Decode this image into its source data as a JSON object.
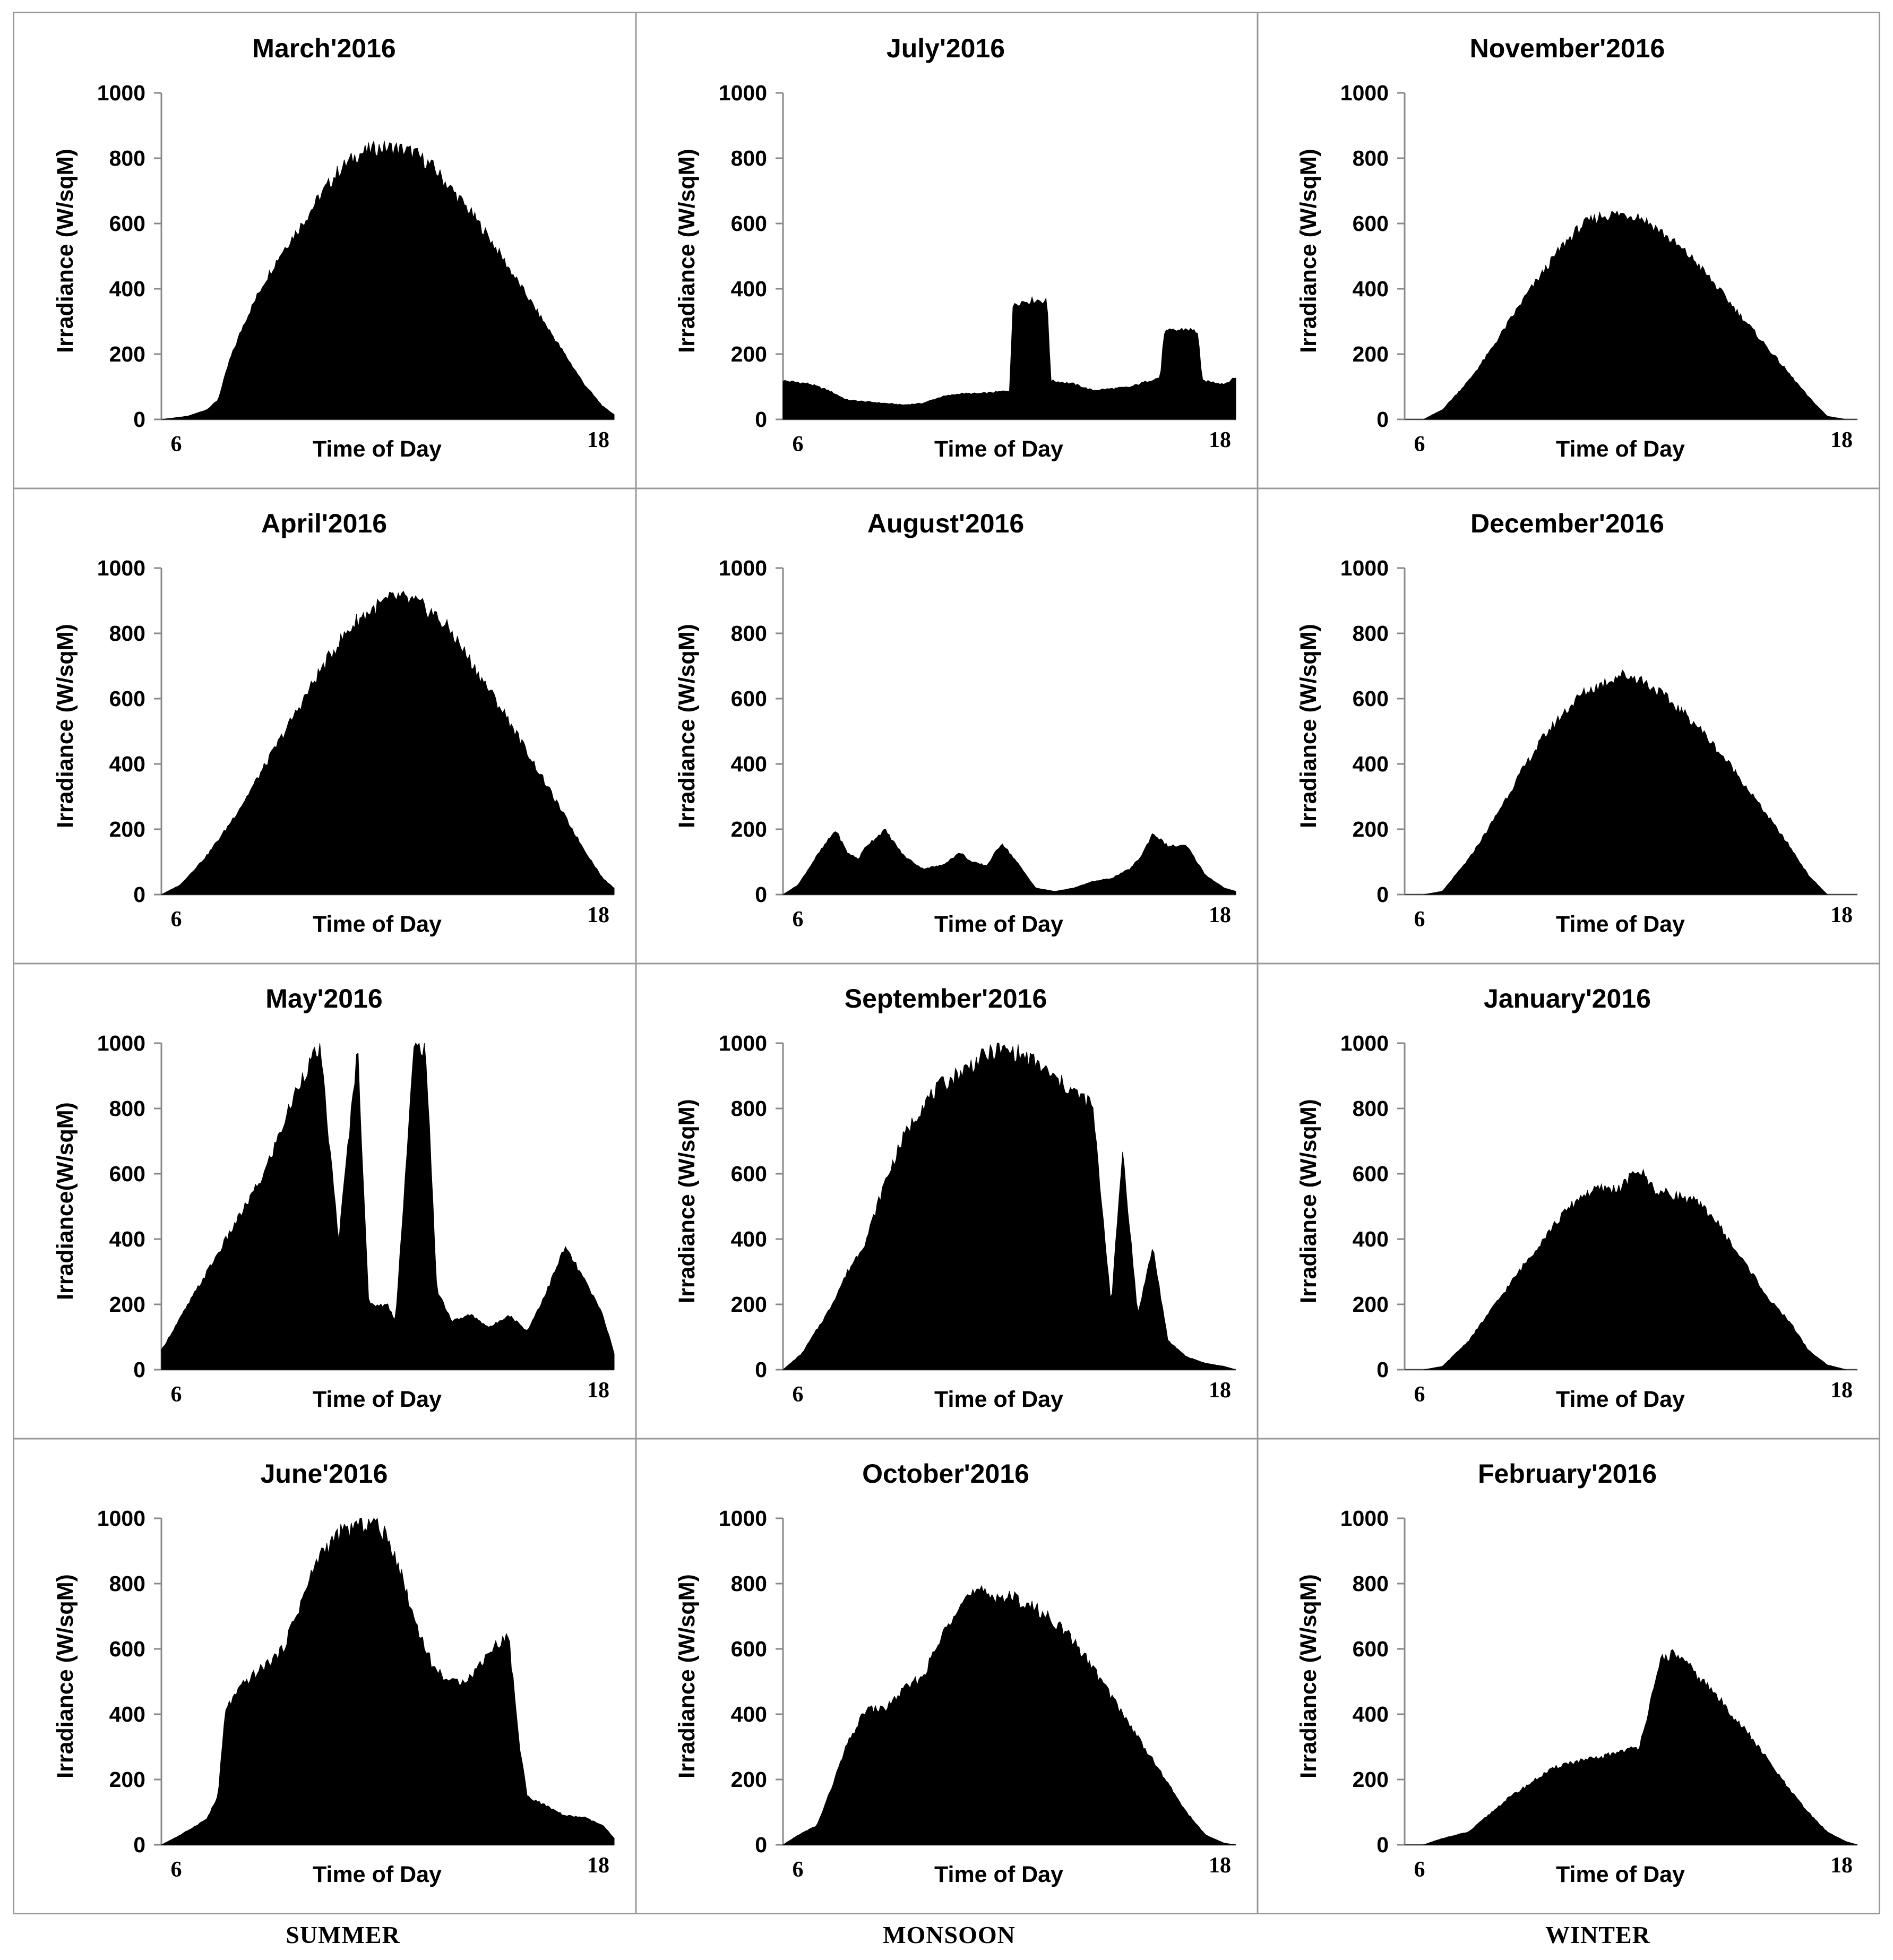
{
  "seasons": [
    "SUMMER",
    "MONSOON",
    "WINTER"
  ],
  "chart_data": [
    {
      "type": "area",
      "title": "March'2016",
      "xlabel": "Time of Day",
      "ylabel": "Irradiance (W/sqM)",
      "ylim": [
        0,
        1000
      ],
      "yticks": [
        0,
        200,
        400,
        600,
        800,
        1000
      ],
      "xtick_labels": [
        "6",
        "18"
      ],
      "season": "SUMMER",
      "x": [
        5.8,
        6.5,
        7.0,
        7.3,
        7.6,
        8.0,
        8.5,
        9.0,
        9.5,
        10.0,
        10.5,
        11.0,
        11.5,
        12.0,
        12.5,
        13.0,
        13.5,
        14.0,
        14.5,
        15.0,
        15.5,
        16.0,
        16.5,
        17.0,
        17.5,
        17.8
      ],
      "y": [
        0,
        10,
        30,
        60,
        180,
        300,
        420,
        520,
        600,
        690,
        770,
        820,
        840,
        840,
        825,
        780,
        710,
        640,
        560,
        470,
        380,
        290,
        200,
        110,
        40,
        15
      ]
    },
    {
      "type": "area",
      "title": "July'2016",
      "xlabel": "Time of Day",
      "ylabel": "Irradiance (W/sqM)",
      "ylim": [
        0,
        1000
      ],
      "yticks": [
        0,
        200,
        400,
        600,
        800,
        1000
      ],
      "xtick_labels": [
        "6",
        "18"
      ],
      "season": "MONSOON",
      "x": [
        5.8,
        6.5,
        7.0,
        7.5,
        8.0,
        8.5,
        9.0,
        9.5,
        10.0,
        10.5,
        11.0,
        11.5,
        11.8,
        11.9,
        12.5,
        12.8,
        12.9,
        13.5,
        14.0,
        14.5,
        15.0,
        15.5,
        15.8,
        15.9,
        16.5,
        16.8,
        16.9,
        17.5,
        17.8
      ],
      "y": [
        120,
        110,
        90,
        60,
        55,
        50,
        45,
        50,
        70,
        80,
        80,
        85,
        90,
        360,
        370,
        365,
        120,
        110,
        90,
        95,
        100,
        120,
        130,
        270,
        280,
        270,
        120,
        110,
        130
      ]
    },
    {
      "type": "area",
      "title": "November'2016",
      "xlabel": "Time of Day",
      "ylabel": "Irradiance (W/sqM)",
      "ylim": [
        0,
        1000
      ],
      "yticks": [
        0,
        200,
        400,
        600,
        800,
        1000
      ],
      "xtick_labels": [
        "6",
        "18"
      ],
      "season": "WINTER",
      "x": [
        5.8,
        6.3,
        6.8,
        7.5,
        8.0,
        8.5,
        9.0,
        9.5,
        10.0,
        10.5,
        11.0,
        11.5,
        12.0,
        12.5,
        13.0,
        13.5,
        14.0,
        14.5,
        15.0,
        15.5,
        16.0,
        16.5,
        17.0,
        17.5,
        17.8
      ],
      "y": [
        0,
        0,
        30,
        120,
        200,
        290,
        380,
        460,
        540,
        600,
        630,
        635,
        630,
        590,
        540,
        490,
        420,
        350,
        280,
        210,
        140,
        70,
        10,
        0,
        0
      ]
    },
    {
      "type": "area",
      "title": "April'2016",
      "xlabel": "Time of Day",
      "ylabel": "Irradiance (W/sqM)",
      "ylim": [
        0,
        1000
      ],
      "yticks": [
        0,
        200,
        400,
        600,
        800,
        1000
      ],
      "xtick_labels": [
        "6",
        "18"
      ],
      "season": "SUMMER",
      "x": [
        5.8,
        6.3,
        7.0,
        7.5,
        8.0,
        8.5,
        9.0,
        9.5,
        10.0,
        10.5,
        11.0,
        11.5,
        12.0,
        12.5,
        13.0,
        13.5,
        14.0,
        14.5,
        15.0,
        15.5,
        16.0,
        16.5,
        17.0,
        17.5,
        17.8
      ],
      "y": [
        0,
        30,
        120,
        200,
        290,
        390,
        490,
        590,
        690,
        780,
        850,
        890,
        920,
        905,
        870,
        810,
        720,
        630,
        540,
        440,
        340,
        240,
        140,
        50,
        20
      ]
    },
    {
      "type": "area",
      "title": "August'2016",
      "xlabel": "Time of Day",
      "ylabel": "Irradiance (W/sqM)",
      "ylim": [
        0,
        1000
      ],
      "yticks": [
        0,
        200,
        400,
        600,
        800,
        1000
      ],
      "xtick_labels": [
        "6",
        "18"
      ],
      "season": "MONSOON",
      "x": [
        5.8,
        6.2,
        6.7,
        7.2,
        7.5,
        7.8,
        8.0,
        8.5,
        9.0,
        9.5,
        10.0,
        10.5,
        10.8,
        11.2,
        11.6,
        12.0,
        12.5,
        13.0,
        13.5,
        14.0,
        14.5,
        15.0,
        15.3,
        15.6,
        16.0,
        16.5,
        17.0,
        17.5,
        17.8
      ],
      "y": [
        0,
        30,
        120,
        200,
        130,
        110,
        150,
        200,
        120,
        80,
        90,
        130,
        100,
        90,
        160,
        100,
        20,
        10,
        20,
        40,
        50,
        80,
        120,
        190,
        150,
        150,
        60,
        20,
        10
      ]
    },
    {
      "type": "area",
      "title": "December'2016",
      "xlabel": "Time of Day",
      "ylabel": "Irradiance (W/sqM)",
      "ylim": [
        0,
        1000
      ],
      "yticks": [
        0,
        200,
        400,
        600,
        800,
        1000
      ],
      "xtick_labels": [
        "6",
        "18"
      ],
      "season": "WINTER",
      "x": [
        5.8,
        6.3,
        6.8,
        7.5,
        8.0,
        8.5,
        9.0,
        9.5,
        10.0,
        10.5,
        11.0,
        11.5,
        12.0,
        12.5,
        13.0,
        13.5,
        14.0,
        14.5,
        15.0,
        15.5,
        16.0,
        16.5,
        17.0,
        17.5,
        17.8
      ],
      "y": [
        0,
        0,
        10,
        110,
        200,
        300,
        400,
        490,
        560,
        620,
        650,
        680,
        670,
        630,
        580,
        530,
        460,
        390,
        310,
        230,
        150,
        60,
        0,
        0,
        0
      ]
    },
    {
      "type": "area",
      "title": "May'2016",
      "xlabel": "Time of Day",
      "ylabel": "Irradiance(W/sqM)",
      "ylim": [
        0,
        1000
      ],
      "yticks": [
        0,
        200,
        400,
        600,
        800,
        1000
      ],
      "xtick_labels": [
        "6",
        "18"
      ],
      "season": "SUMMER",
      "x": [
        5.8,
        6.5,
        7.0,
        7.5,
        8.0,
        8.5,
        9.0,
        9.5,
        10.0,
        10.5,
        11.0,
        11.3,
        11.8,
        12.0,
        12.5,
        12.8,
        13.1,
        13.5,
        14.0,
        14.5,
        15.0,
        15.5,
        16.0,
        16.5,
        17.0,
        17.5,
        17.8
      ],
      "y": [
        60,
        200,
        300,
        400,
        500,
        600,
        750,
        900,
        1000,
        400,
        1000,
        200,
        200,
        150,
        1000,
        1000,
        250,
        150,
        170,
        130,
        170,
        120,
        240,
        380,
        280,
        170,
        50
      ]
    },
    {
      "type": "area",
      "title": "September'2016",
      "xlabel": "Time of Day",
      "ylabel": "Irradiance (W/sqM)",
      "ylim": [
        0,
        1000
      ],
      "yticks": [
        0,
        200,
        400,
        600,
        800,
        1000
      ],
      "xtick_labels": [
        "6",
        "18"
      ],
      "season": "MONSOON",
      "x": [
        5.8,
        6.3,
        7.0,
        7.5,
        8.0,
        8.5,
        9.0,
        9.5,
        10.0,
        10.5,
        11.0,
        11.5,
        12.0,
        12.5,
        13.0,
        13.5,
        14.0,
        14.5,
        14.8,
        15.2,
        15.6,
        16.0,
        16.5,
        17.0,
        17.5,
        17.8
      ],
      "y": [
        0,
        50,
        180,
        300,
        400,
        580,
        720,
        820,
        880,
        920,
        960,
        990,
        980,
        950,
        900,
        860,
        820,
        200,
        680,
        170,
        380,
        90,
        40,
        20,
        10,
        0
      ]
    },
    {
      "type": "area",
      "title": "January'2016",
      "xlabel": "Time of Day",
      "ylabel": "Irradiance (W/sqM)",
      "ylim": [
        0,
        1000
      ],
      "yticks": [
        0,
        200,
        400,
        600,
        800,
        1000
      ],
      "xtick_labels": [
        "6",
        "18"
      ],
      "season": "WINTER",
      "x": [
        5.8,
        6.3,
        6.8,
        7.5,
        8.0,
        8.5,
        9.0,
        9.5,
        10.0,
        10.5,
        11.0,
        11.5,
        12.0,
        12.5,
        13.0,
        13.5,
        14.0,
        14.5,
        15.0,
        15.5,
        16.0,
        16.5,
        17.0,
        17.5,
        17.8
      ],
      "y": [
        0,
        0,
        10,
        90,
        170,
        250,
        330,
        410,
        480,
        540,
        560,
        560,
        620,
        550,
        540,
        520,
        470,
        380,
        300,
        210,
        150,
        60,
        15,
        0,
        0
      ]
    },
    {
      "type": "area",
      "title": "June'2016",
      "xlabel": "Time of Day",
      "ylabel": "Irradiance (W/sqM)",
      "ylim": [
        0,
        1000
      ],
      "yticks": [
        0,
        200,
        400,
        600,
        800,
        1000
      ],
      "xtick_labels": [
        "6",
        "18"
      ],
      "season": "SUMMER",
      "x": [
        5.8,
        6.3,
        7.0,
        7.3,
        7.5,
        8.0,
        8.5,
        9.0,
        9.5,
        10.0,
        10.5,
        11.0,
        11.5,
        12.0,
        12.5,
        13.0,
        13.5,
        14.0,
        14.5,
        15.0,
        15.3,
        15.5,
        16.0,
        16.5,
        17.0,
        17.5,
        17.8
      ],
      "y": [
        0,
        30,
        80,
        150,
        420,
        500,
        550,
        600,
        750,
        900,
        960,
        990,
        1000,
        900,
        700,
        550,
        500,
        520,
        600,
        650,
        300,
        150,
        120,
        90,
        85,
        60,
        20
      ]
    },
    {
      "type": "area",
      "title": "October'2016",
      "xlabel": "Time of Day",
      "ylabel": "Irradiance (W/sqM)",
      "ylim": [
        0,
        1000
      ],
      "yticks": [
        0,
        200,
        400,
        600,
        800,
        1000
      ],
      "xtick_labels": [
        "6",
        "18"
      ],
      "season": "MONSOON",
      "x": [
        5.8,
        6.2,
        6.7,
        7.0,
        7.5,
        8.0,
        8.5,
        9.0,
        9.5,
        10.0,
        10.5,
        11.0,
        11.5,
        12.0,
        12.5,
        13.0,
        13.5,
        14.0,
        14.5,
        15.0,
        15.5,
        16.0,
        16.5,
        17.0,
        17.5,
        17.8
      ],
      "y": [
        0,
        30,
        60,
        150,
        310,
        420,
        420,
        480,
        520,
        640,
        760,
        780,
        770,
        760,
        730,
        690,
        630,
        550,
        460,
        370,
        280,
        190,
        100,
        30,
        5,
        0
      ]
    },
    {
      "type": "area",
      "title": "February'2016",
      "xlabel": "Time of Day",
      "ylabel": "Irradiance (W/sqM)",
      "ylim": [
        0,
        1000
      ],
      "yticks": [
        0,
        200,
        400,
        600,
        800,
        1000
      ],
      "xtick_labels": [
        "6",
        "18"
      ],
      "season": "WINTER",
      "x": [
        5.8,
        6.3,
        6.8,
        7.5,
        8.0,
        8.5,
        9.0,
        9.5,
        10.0,
        10.5,
        11.0,
        11.5,
        12.0,
        12.5,
        12.6,
        13.0,
        13.5,
        14.0,
        14.5,
        15.0,
        15.5,
        16.0,
        16.5,
        17.0,
        17.5,
        17.8
      ],
      "y": [
        0,
        0,
        20,
        40,
        90,
        140,
        180,
        220,
        250,
        260,
        270,
        290,
        300,
        520,
        580,
        590,
        530,
        470,
        400,
        330,
        250,
        170,
        100,
        40,
        10,
        0
      ]
    }
  ]
}
